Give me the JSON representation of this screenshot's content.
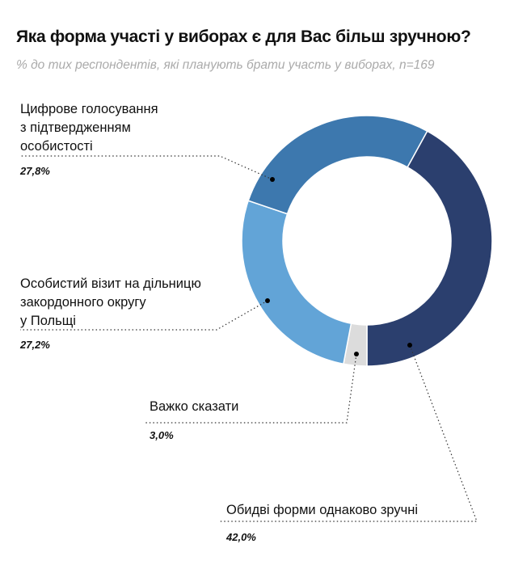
{
  "chart_data": {
    "type": "pie",
    "title": "Яка форма участі у виборах є для Вас більш зручною?",
    "subtitle": "% до тих респондентів, які планують брати участь у виборах, n=169",
    "slices": [
      {
        "label": "Обидві форми однаково зручні",
        "value": 42.0,
        "display": "42,0%",
        "color": "#2b3f6e"
      },
      {
        "label": "Важко сказати",
        "value": 3.0,
        "display": "3,0%",
        "color": "#dcdcdc"
      },
      {
        "label": "Особистий візит на дільницю закордонного округу у Польщі",
        "lines": [
          "Особистий візит на дільницю",
          "закордонного округу",
          "у Польщі"
        ],
        "value": 27.2,
        "display": "27,2%",
        "color": "#62a4d7"
      },
      {
        "label": "Цифрове голосування з підтвердженням особистості",
        "lines": [
          "Цифрове голосування",
          "з підтвердженням",
          "особистості"
        ],
        "value": 27.8,
        "display": "27,8%",
        "color": "#3d78ae"
      }
    ],
    "start_angle_deg": 28.8,
    "donut": true
  }
}
